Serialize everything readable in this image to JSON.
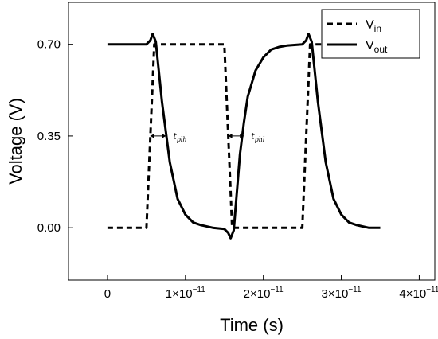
{
  "chart_data": {
    "type": "line",
    "xlabel": "Time (s)",
    "ylabel": "Voltage (V)",
    "xlim": [
      -5e-12,
      4.2e-11
    ],
    "ylim": [
      -0.2,
      0.86
    ],
    "x_ticks": [
      {
        "value": 0,
        "label": "0"
      },
      {
        "value": 1e-11,
        "base": "1×10",
        "exp": "−11"
      },
      {
        "value": 2e-11,
        "base": "2×10",
        "exp": "−11"
      },
      {
        "value": 3e-11,
        "base": "3×10",
        "exp": "−11"
      },
      {
        "value": 4e-11,
        "base": "4×10",
        "exp": "−11"
      }
    ],
    "y_ticks": [
      {
        "value": 0.0,
        "label": "0.00"
      },
      {
        "value": 0.35,
        "label": "0.35"
      },
      {
        "value": 0.7,
        "label": "0.70"
      }
    ],
    "grid": false,
    "legend_position": "top-right",
    "series": [
      {
        "name_main": "V",
        "name_sub": "in",
        "style": "dashed",
        "color": "#000000",
        "x": [
          0,
          5e-12,
          6e-12,
          1.5e-11,
          1.6e-11,
          2.5e-11,
          2.6e-11,
          3.5e-11
        ],
        "y": [
          0,
          0,
          0.7,
          0.7,
          0,
          0,
          0.7,
          0.7
        ]
      },
      {
        "name_main": "V",
        "name_sub": "out",
        "style": "solid",
        "color": "#000000",
        "x": [
          0,
          5e-12,
          5.5e-12,
          5.8e-12,
          6.2e-12,
          7e-12,
          8e-12,
          9e-12,
          1e-11,
          1.1e-11,
          1.2e-11,
          1.35e-11,
          1.5e-11,
          1.55e-11,
          1.58e-11,
          1.62e-11,
          1.7e-11,
          1.75e-11,
          1.8e-11,
          1.9e-11,
          2e-11,
          2.1e-11,
          2.2e-11,
          2.3e-11,
          2.5e-11,
          2.55e-11,
          2.58e-11,
          2.62e-11,
          2.7e-11,
          2.8e-11,
          2.9e-11,
          3e-11,
          3.1e-11,
          3.2e-11,
          3.35e-11,
          3.5e-11
        ],
        "y": [
          0.7,
          0.7,
          0.715,
          0.74,
          0.71,
          0.48,
          0.25,
          0.11,
          0.05,
          0.02,
          0.01,
          0.0,
          -0.005,
          -0.02,
          -0.04,
          -0.01,
          0.28,
          0.4,
          0.5,
          0.6,
          0.65,
          0.68,
          0.69,
          0.695,
          0.7,
          0.715,
          0.74,
          0.71,
          0.48,
          0.25,
          0.11,
          0.05,
          0.02,
          0.01,
          0.0,
          0.0
        ]
      }
    ],
    "annotations": [
      {
        "id": "tplh",
        "main": "t",
        "sub": "plh",
        "x_start": 5.5e-12,
        "x_end": 7.5e-12,
        "y": 0.35
      },
      {
        "id": "tphl",
        "main": "t",
        "sub": "phl",
        "x_start": 1.55e-11,
        "x_end": 1.75e-11,
        "y": 0.35
      }
    ]
  }
}
